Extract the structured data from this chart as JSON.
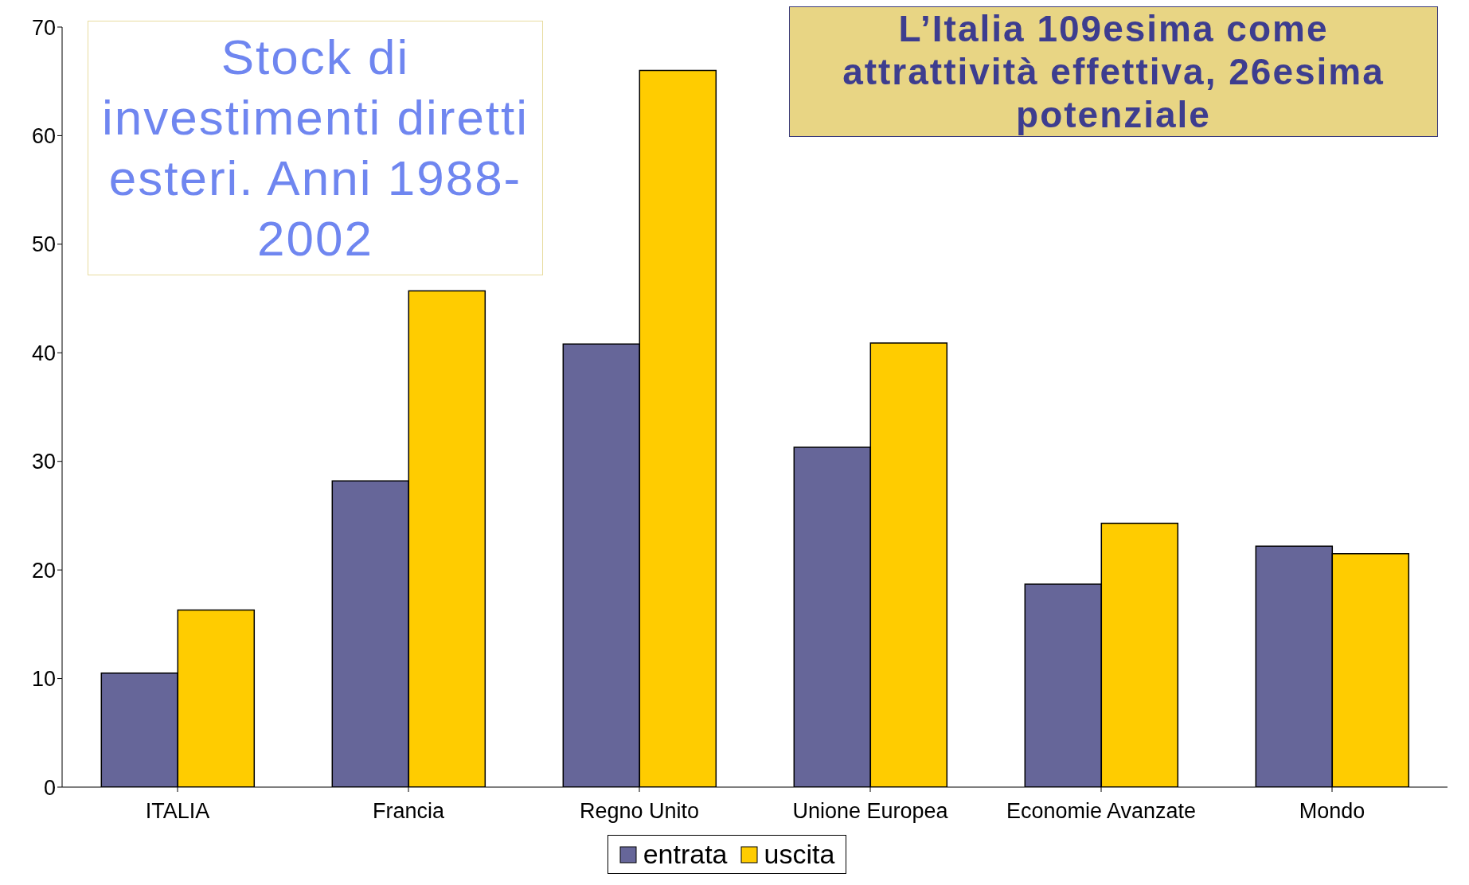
{
  "chart_data": {
    "type": "bar",
    "title": "Stock di investimenti diretti esteri. Anni 1988-2002",
    "annotations": [
      "L’Italia 109esima come attrattività effettiva, 26esima potenziale"
    ],
    "categories": [
      "ITALIA",
      "Francia",
      "Regno Unito",
      "Unione Europea",
      "Economie Avanzate",
      "Mondo"
    ],
    "series": [
      {
        "name": "entrata",
        "color": "#666699",
        "values": [
          10.5,
          28.2,
          40.8,
          31.3,
          18.7,
          22.2
        ]
      },
      {
        "name": "uscita",
        "color": "#ffcc00",
        "values": [
          16.3,
          45.7,
          66.0,
          40.9,
          24.3,
          21.5
        ]
      }
    ],
    "ylim": [
      0,
      70
    ],
    "yticks": [
      0,
      10,
      20,
      30,
      40,
      50,
      60,
      70
    ],
    "grid": false,
    "legend": "bottom"
  }
}
